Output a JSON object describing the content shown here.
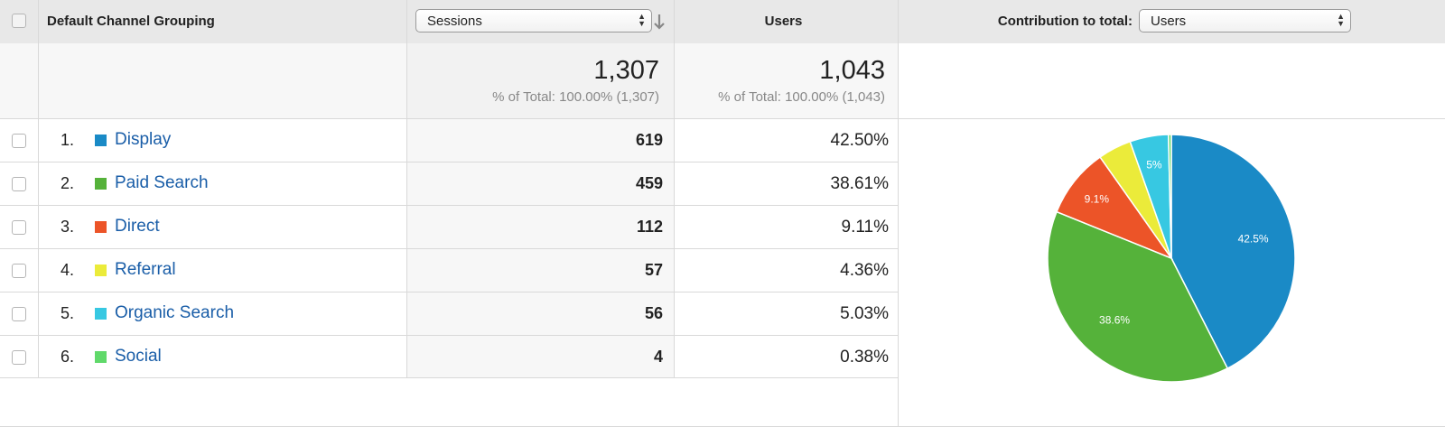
{
  "header": {
    "dimension_label": "Default Channel Grouping",
    "metric_select_value": "Sessions",
    "users_label": "Users",
    "contribution_label": "Contribution to total:",
    "contribution_select_value": "Users"
  },
  "totals": {
    "sessions": {
      "value": "1,307",
      "pct_text": "% of Total: 100.00% (1,307)"
    },
    "users": {
      "value": "1,043",
      "pct_text": "% of Total: 100.00% (1,043)"
    }
  },
  "rows": [
    {
      "index": "1.",
      "name": "Display",
      "color": "#1a8ac6",
      "sessions": "619",
      "users_pct": "42.50%"
    },
    {
      "index": "2.",
      "name": "Paid Search",
      "color": "#55b23a",
      "sessions": "459",
      "users_pct": "38.61%"
    },
    {
      "index": "3.",
      "name": "Direct",
      "color": "#ec5428",
      "sessions": "112",
      "users_pct": "9.11%"
    },
    {
      "index": "4.",
      "name": "Referral",
      "color": "#ebeb3a",
      "sessions": "57",
      "users_pct": "4.36%"
    },
    {
      "index": "5.",
      "name": "Organic Search",
      "color": "#37c8e2",
      "sessions": "56",
      "users_pct": "5.03%"
    },
    {
      "index": "6.",
      "name": "Social",
      "color": "#60d96a",
      "sessions": "4",
      "users_pct": "0.38%"
    }
  ],
  "chart_data": {
    "type": "pie",
    "categories": [
      "Display",
      "Paid Search",
      "Direct",
      "Referral",
      "Organic Search",
      "Social"
    ],
    "values": [
      42.5,
      38.61,
      9.11,
      4.36,
      5.03,
      0.38
    ],
    "colors": [
      "#1a8ac6",
      "#55b23a",
      "#ec5428",
      "#ebeb3a",
      "#37c8e2",
      "#60d96a"
    ],
    "slice_labels": [
      "42.5%",
      "38.6%",
      "9.1%",
      "",
      "5%",
      ""
    ]
  }
}
